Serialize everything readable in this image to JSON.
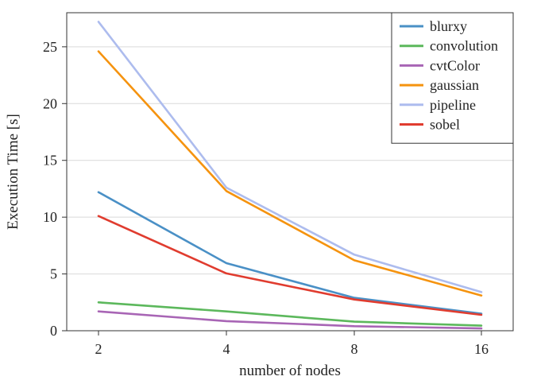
{
  "chart_data": {
    "type": "line",
    "xlabel": "number of nodes",
    "ylabel": "Execution Time [s]",
    "x": [
      "2",
      "4",
      "8",
      "16"
    ],
    "x_scale": "log2",
    "ylim": [
      0,
      28
    ],
    "yticks": [
      "0",
      "5",
      "10",
      "15",
      "20",
      "25"
    ],
    "grid": "horizontal",
    "legend_position": "top-right",
    "series": [
      {
        "name": "blurxy",
        "color": "#4a90c6",
        "values": [
          12.2,
          5.95,
          2.9,
          1.5
        ]
      },
      {
        "name": "convolution",
        "color": "#5cb85c",
        "values": [
          2.5,
          1.7,
          0.8,
          0.45
        ]
      },
      {
        "name": "cvtColor",
        "color": "#a865b5",
        "values": [
          1.7,
          0.85,
          0.4,
          0.2
        ]
      },
      {
        "name": "gaussian",
        "color": "#f5930f",
        "values": [
          24.6,
          12.3,
          6.2,
          3.1
        ]
      },
      {
        "name": "pipeline",
        "color": "#adbcee",
        "values": [
          27.2,
          12.6,
          6.7,
          3.4
        ]
      },
      {
        "name": "sobel",
        "color": "#e03c2f",
        "values": [
          10.1,
          5.05,
          2.75,
          1.4
        ]
      }
    ]
  }
}
